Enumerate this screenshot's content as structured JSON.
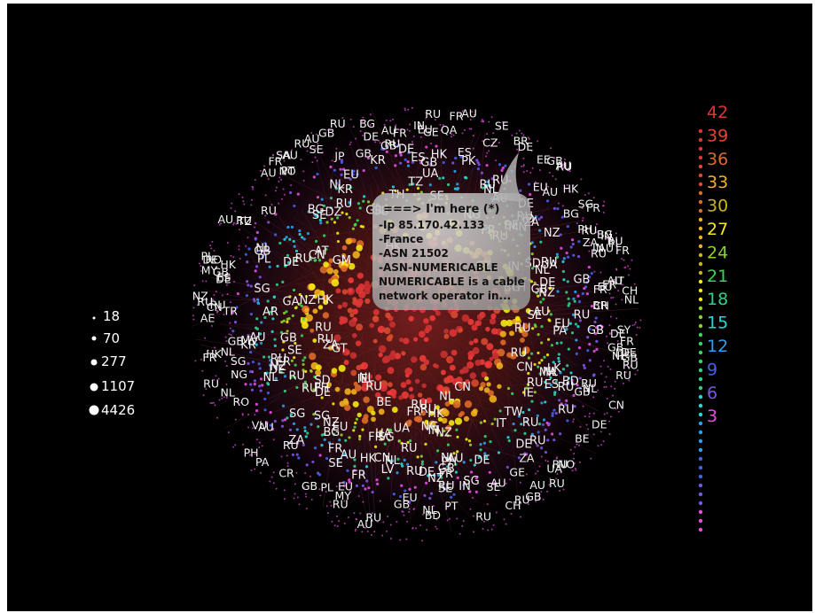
{
  "tooltip": {
    "title": "===> I'm here (*)",
    "lines": [
      "-Ip 85.170.42.133",
      "-France",
      "-ASN 21502",
      "-ASN-NUMERICABLE",
      "NUMERICABLE is a cable",
      "network operator in..."
    ]
  },
  "size_legend": {
    "values": [
      "18",
      "70",
      "277",
      "1107",
      "4426"
    ]
  },
  "color_scale": {
    "labels": [
      "42",
      "39",
      "36",
      "33",
      "30",
      "27",
      "24",
      "21",
      "18",
      "15",
      "12",
      "9",
      "6",
      "3"
    ],
    "colors": [
      "#e03535",
      "#e5452f",
      "#de6a2b",
      "#f2b01c",
      "#c8b31d",
      "#f5ea12",
      "#8fd02a",
      "#35d65e",
      "#2fcf8a",
      "#27d8d8",
      "#2e9ff0",
      "#3f63e8",
      "#7a55e6",
      "#e84de0"
    ]
  },
  "countries": {
    "outer": [
      "UA",
      "AU",
      "PA",
      "HK",
      "JP",
      "RU",
      "HK",
      "RU",
      "RU",
      "GB",
      "SE",
      "FR",
      "FR",
      "RU",
      "SE",
      "GB",
      "GB",
      "AU",
      "GT",
      "AU",
      "ES",
      "ES",
      "RO",
      "BG",
      "NL",
      "RU",
      "NL",
      "NL",
      "RU",
      "ES",
      "CR",
      "NL",
      "UA",
      "NL",
      "DE",
      "RU",
      "RU",
      "FR",
      "SE",
      "SE",
      "BG",
      "RU",
      "RU",
      "SG",
      "GB",
      "CH",
      "RU",
      "AU",
      "RU",
      "DE",
      "NL",
      "LV",
      "DE",
      "KR",
      "PL",
      "PL",
      "RU",
      "HK",
      "PH",
      "AU",
      "HK",
      "MV",
      "GB",
      "SD",
      "DE",
      "BR",
      "NG",
      "IE",
      "BE",
      "NL",
      "AU",
      "FR",
      "AU",
      "AR",
      "RU",
      "LK",
      "DE",
      "PL",
      "DZ",
      "PL",
      "RU",
      "VU",
      "PH",
      "EU",
      "MN",
      "NL",
      "PK",
      "MY",
      "RU",
      "ES",
      "GA",
      "FR",
      "PH",
      "RU",
      "AU",
      "AU",
      "HK",
      "NZ",
      "EU",
      "AU",
      "SA",
      "BE",
      "SG",
      "GB",
      "PT",
      "SG",
      "AU",
      "NL",
      "SE",
      "NL",
      "FR",
      "SG",
      "DE",
      "GB",
      "RU",
      "DE",
      "HK",
      "DE",
      "PH",
      "SD",
      "NL",
      "GB",
      "IN",
      "FR",
      "AU",
      "GB",
      "BG",
      "AU",
      "CN",
      "NO",
      "CN",
      "SG",
      "RU",
      "GM",
      "AU",
      "FR",
      "AU",
      "RU",
      "CN",
      "GB",
      "RU",
      "TZ",
      "HK",
      "SG",
      "RU",
      "ZA",
      "BE",
      "DE",
      "RU",
      "RU",
      "GB",
      "EE",
      "CN",
      "EU",
      "HK",
      "RU",
      "SE",
      "NO",
      "RU",
      "ID",
      "NZ",
      "GB",
      "GB",
      "RU",
      "UA",
      "IN",
      "BG",
      "SY",
      "IN",
      "BG",
      "AU",
      "AU",
      "FR",
      "CN",
      "IN",
      "MA",
      "TW",
      "IN",
      "RU",
      "UA",
      "CN",
      "PT",
      "TH",
      "AE",
      "FR",
      "FR",
      "RO",
      "UA",
      "BR",
      "DE",
      "RU",
      "AU",
      "AU",
      "RU",
      "RU",
      "NL",
      "TH",
      "EU",
      "NL",
      "FR",
      "FR",
      "RU",
      "RU",
      "NZ",
      "DE",
      "ZA",
      "BD",
      "GE",
      "GB",
      "EU",
      "RU",
      "GB",
      "RU",
      "CZ",
      "NZ",
      "RU",
      "GB",
      "EU",
      "QA",
      "IT",
      "EU",
      "RU",
      "TR",
      "RU",
      "DE",
      "GB",
      "SG",
      "GE",
      "IE",
      "RU",
      "NZ",
      "RU",
      "GB",
      "CH",
      "PA",
      "RU",
      "DE",
      "DE",
      "KR",
      "RU",
      "FR",
      "CZ",
      "RU",
      "AT",
      "FR",
      "DE",
      "NZ",
      "ZA",
      "RU",
      "TZ",
      "NL",
      "ZA",
      "NZ",
      "CH",
      "IN",
      "GB",
      "GB",
      "SE",
      "SE",
      "IT",
      "DE",
      "NZ",
      "FR",
      "EU",
      "BD",
      "BG",
      "RU",
      "NL",
      "RU",
      "GB",
      "SE",
      "DE",
      "NL",
      "KR",
      "ZA",
      "RU",
      "RU",
      "MY",
      "NG",
      "NG",
      "RU"
    ]
  }
}
